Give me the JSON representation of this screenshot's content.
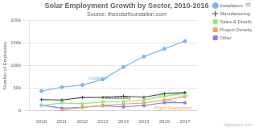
{
  "chart_data": {
    "type": "line",
    "title": "Solar Employment Growth by Sector, 2010-2016",
    "subtitle": "Source: thesolarfoundation.com",
    "y_label": "Number of Employees",
    "x": [
      2010,
      2011,
      2012,
      2013,
      2014,
      2015,
      2016,
      2017
    ],
    "series": [
      {
        "name": "Installation",
        "color": "#7cb5ec",
        "marker": "circle",
        "values": [
          43934,
          52503,
          57177,
          69658,
          97031,
          119931,
          137133,
          154175
        ]
      },
      {
        "name": "Manufacturing",
        "color": "#434348",
        "marker": "plus",
        "values": [
          24916,
          24064,
          29742,
          29851,
          32490,
          30282,
          38121,
          40434
        ]
      },
      {
        "name": "Sales & Distribution",
        "color": "#90ed7d",
        "marker": "square",
        "values": [
          11744,
          17722,
          16005,
          19771,
          20185,
          24377,
          32147,
          39387
        ]
      },
      {
        "name": "Project Development",
        "color": "#f7a35c",
        "marker": "square",
        "values": [
          null,
          2107,
          7987,
          12162,
          15157,
          17557,
          23940,
          31377
        ]
      },
      {
        "name": "Other",
        "color": "#8085e9",
        "marker": "square",
        "values": [
          12908,
          5948,
          8105,
          11248,
          8989,
          11816,
          18274,
          18111
        ]
      }
    ],
    "xlim": [
      2009.4,
      2017.6
    ],
    "xticks": [
      2010,
      2011,
      2012,
      2013,
      2014,
      2015,
      2016,
      2017
    ],
    "ylim": [
      0,
      200000
    ],
    "yticks": [
      0,
      {
        "value": 50000,
        "label": "50k"
      },
      {
        "value": 100000,
        "label": "100k"
      },
      {
        "value": 150000,
        "label": "150k"
      },
      {
        "value": 200000,
        "label": "200k"
      }
    ],
    "grid": "y",
    "legend": "upper right",
    "annotations": [
      {
        "text": "Installation",
        "x": 2012.3,
        "y": 72000,
        "color": "#7cb5ec"
      },
      {
        "text": "Manufacturing",
        "x": 2013.1,
        "y": 28000,
        "color": "#434348"
      },
      {
        "text": "Sales & Distribution",
        "x": 2015.5,
        "y": 34500,
        "color": "#90ed7d"
      },
      {
        "text": "Project Development",
        "x": 2015.5,
        "y": 5500,
        "color": "#f7a35c"
      },
      {
        "text": "Other",
        "x": 2016.1,
        "y": 20500,
        "color": "#8085e9"
      },
      {
        "text": "≡"
      },
      {
        "text": "Highcharts.com"
      }
    ]
  }
}
